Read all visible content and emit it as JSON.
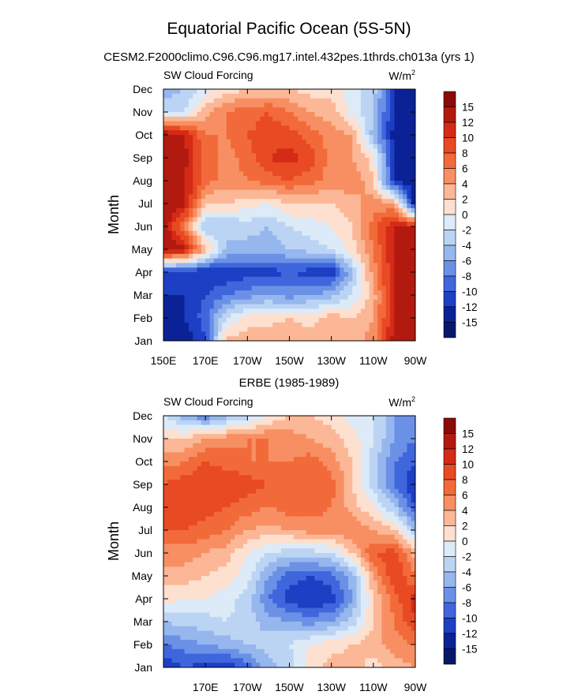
{
  "title": "Equatorial Pacific Ocean (5S-5N)",
  "subtitle": "CESM2.F2000climo.C96.C96.mg17.intel.432pes.1thrds.ch013a (yrs 1)",
  "colorbar": {
    "labels": [
      "15",
      "12",
      "10",
      "8",
      "6",
      "4",
      "2",
      "0",
      "-2",
      "-4",
      "-6",
      "-8",
      "-10",
      "-12",
      "-15"
    ],
    "colors": [
      "#8b0a0a",
      "#b31a0f",
      "#d42a16",
      "#e84a23",
      "#f26a3a",
      "#f78f62",
      "#fbb796",
      "#fde0cf",
      "#ddeaf8",
      "#bcd4f4",
      "#96b6ee",
      "#6b91e6",
      "#3f66dc",
      "#1c3fc4",
      "#0b2296",
      "#081869"
    ]
  },
  "chart_data": [
    {
      "type": "heatmap",
      "title": "",
      "left_label": "SW Cloud Forcing",
      "units_base": "W/m",
      "units_exp": "2",
      "xlabel": "",
      "ylabel": "Month",
      "xlim": [
        150,
        270
      ],
      "x_ticks": [
        {
          "value": 150,
          "label": "150E"
        },
        {
          "value": 170,
          "label": "170E"
        },
        {
          "value": 190,
          "label": "170W"
        },
        {
          "value": 210,
          "label": "150W"
        },
        {
          "value": 230,
          "label": "130W"
        },
        {
          "value": 250,
          "label": "110W"
        },
        {
          "value": 270,
          "label": "90W"
        }
      ],
      "y_ticks": [
        "Jan",
        "Feb",
        "Mar",
        "Apr",
        "May",
        "Jun",
        "Jul",
        "Aug",
        "Sep",
        "Oct",
        "Nov",
        "Dec"
      ],
      "x": [
        150,
        160,
        170,
        180,
        190,
        200,
        210,
        220,
        230,
        240,
        250,
        260,
        270
      ],
      "z": [
        [
          -14,
          -14,
          -10,
          3,
          3,
          4,
          4,
          3,
          4,
          3,
          5,
          13,
          14
        ],
        [
          -13,
          -12,
          -9,
          -2,
          1,
          1,
          2,
          1,
          3,
          2,
          4,
          12,
          14
        ],
        [
          -12,
          -12,
          -10,
          -8,
          -7,
          -6,
          -7,
          -6,
          -5,
          -2,
          3,
          12,
          14
        ],
        [
          -11,
          -12,
          -12,
          -12,
          -11,
          -11,
          -10,
          -11,
          -12,
          -4,
          5,
          12,
          14
        ],
        [
          14,
          13,
          3,
          -4,
          -5,
          -5,
          -4,
          -3,
          -2,
          1,
          6,
          12,
          14
        ],
        [
          14,
          5,
          -4,
          -4,
          -3,
          -4,
          -2,
          -1,
          0,
          2,
          7,
          12,
          12
        ],
        [
          14,
          13,
          2,
          2,
          1,
          0,
          2,
          2,
          2,
          3,
          5,
          4,
          -14
        ],
        [
          14,
          12,
          7,
          5,
          6,
          7,
          8,
          7,
          5,
          6,
          2,
          -12,
          -14
        ],
        [
          14,
          13,
          7,
          5,
          7,
          10,
          11,
          9,
          5,
          4,
          1,
          -12,
          -14
        ],
        [
          14,
          12,
          6,
          6,
          8,
          9,
          9,
          7,
          5,
          4,
          -5,
          -13,
          -14
        ],
        [
          -3,
          -2,
          3,
          6,
          7,
          8,
          6,
          4,
          3,
          -1,
          -4,
          -12,
          -14
        ],
        [
          -5,
          -4,
          -1,
          1,
          2,
          2,
          2,
          1,
          1,
          -1,
          -3,
          -12,
          -14
        ]
      ]
    },
    {
      "type": "heatmap",
      "title": "ERBE (1985-1989)",
      "left_label": "SW Cloud Forcing",
      "units_base": "W/m",
      "units_exp": "2",
      "xlabel": "",
      "ylabel": "Month",
      "xlim": [
        150,
        270
      ],
      "x_ticks": [
        {
          "value": 170,
          "label": "170E"
        },
        {
          "value": 190,
          "label": "170W"
        },
        {
          "value": 210,
          "label": "150W"
        },
        {
          "value": 230,
          "label": "130W"
        },
        {
          "value": 250,
          "label": "110W"
        },
        {
          "value": 270,
          "label": "90W"
        }
      ],
      "y_ticks": [
        "Jan",
        "Feb",
        "Mar",
        "Apr",
        "May",
        "Jun",
        "Jul",
        "Aug",
        "Sep",
        "Oct",
        "Nov",
        "Dec"
      ],
      "x": [
        150,
        160,
        170,
        180,
        190,
        200,
        210,
        220,
        230,
        240,
        250,
        260,
        270
      ],
      "z": [
        [
          -12,
          -10,
          -11,
          -12,
          -9,
          -5,
          -3,
          1,
          3,
          3,
          1,
          3,
          4
        ],
        [
          -8,
          -7,
          -6,
          -5,
          -4,
          -3,
          -2,
          0,
          1,
          2,
          3,
          5,
          6
        ],
        [
          -4,
          -3,
          -3,
          -2,
          -3,
          -5,
          -6,
          -7,
          -6,
          -3,
          2,
          6,
          10
        ],
        [
          1,
          0,
          0,
          -1,
          -3,
          -8,
          -11,
          -12,
          -11,
          -6,
          2,
          7,
          11
        ],
        [
          3,
          3,
          2,
          1,
          -1,
          -6,
          -9,
          -10,
          -9,
          -5,
          4,
          10,
          6
        ],
        [
          5,
          5,
          4,
          3,
          0,
          -2,
          -3,
          -3,
          -2,
          2,
          8,
          9,
          3
        ],
        [
          8,
          8,
          7,
          6,
          4,
          3,
          4,
          5,
          5,
          6,
          4,
          2,
          -4
        ],
        [
          10,
          10,
          9,
          8,
          7,
          6,
          7,
          7,
          6,
          3,
          0,
          -4,
          -10
        ],
        [
          8,
          9,
          10,
          10,
          9,
          8,
          8,
          7,
          7,
          2,
          -3,
          -8,
          -12
        ],
        [
          5,
          6,
          8,
          7,
          6,
          6,
          6,
          7,
          5,
          2,
          -3,
          -8,
          -10
        ],
        [
          2,
          2,
          4,
          5,
          6,
          6,
          5,
          4,
          3,
          1,
          -2,
          -6,
          -8
        ],
        [
          -2,
          -5,
          -8,
          -5,
          -3,
          0,
          2,
          2,
          1,
          -1,
          -2,
          -6,
          -8
        ]
      ]
    }
  ]
}
